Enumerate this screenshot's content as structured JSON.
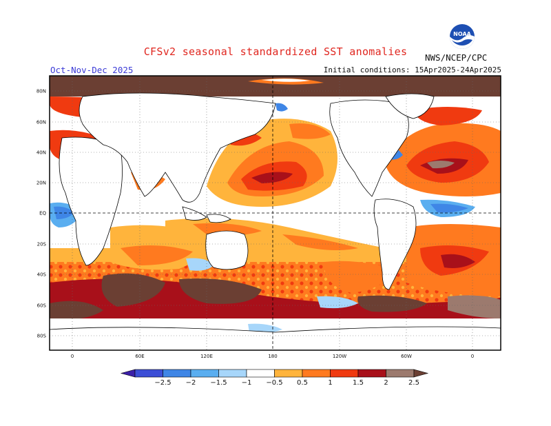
{
  "header": {
    "title": "CFSv2 seasonal standardized SST anomalies",
    "period": "Oct-Nov-Dec 2025",
    "initial_conditions": "Initial conditions: 15Apr2025-24Apr2025",
    "agency": "NWS/NCEP/CPC",
    "logo_text": "NOAA"
  },
  "axes": {
    "lat_labels": [
      "80N",
      "60N",
      "40N",
      "20N",
      "EQ",
      "20S",
      "40S",
      "60S",
      "80S"
    ],
    "lon_labels": [
      "0",
      "60E",
      "120E",
      "180",
      "120W",
      "60W",
      "0"
    ]
  },
  "colorbar": {
    "labels": [
      "-2.5",
      "-2",
      "-1.5",
      "-1",
      "-0.5",
      "0.5",
      "1",
      "1.5",
      "2",
      "2.5"
    ],
    "colors": [
      "#3b1fa8",
      "#3c4ed6",
      "#3f86e6",
      "#5aaef0",
      "#a7d6fa",
      "#ffffff",
      "#ffb43c",
      "#ff7a1f",
      "#f03a10",
      "#a8101a",
      "#9c7a6e",
      "#6b3f33"
    ]
  },
  "map_colors": {
    "ocean_positive_1": "#ffb43c",
    "ocean_positive_2": "#ff7a1f",
    "ocean_positive_3": "#f03a10",
    "ocean_positive_4": "#a8101a",
    "ocean_positive_5": "#9c7a6e",
    "ocean_positive_6": "#6b3f33",
    "ocean_negative_1": "#a7d6fa",
    "ocean_negative_2": "#5aaef0",
    "ocean_negative_3": "#3f86e6"
  }
}
